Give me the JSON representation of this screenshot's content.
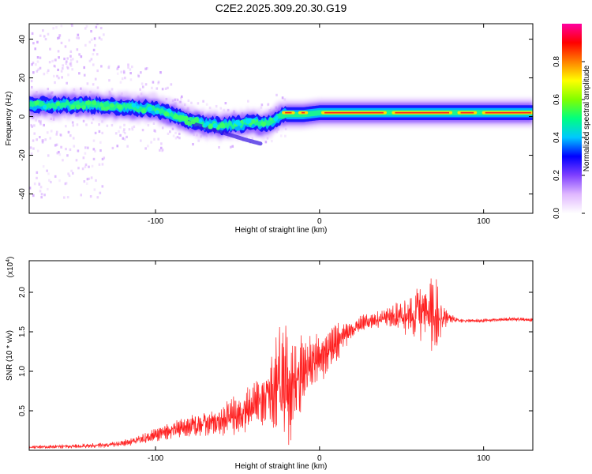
{
  "title": "C2E2.2025.309.20.30.G19",
  "chart_data": [
    {
      "type": "heatmap",
      "name": "spectrogram",
      "xlabel": "Height of straight line (km)",
      "ylabel": "Frequency (Hz)",
      "xlim": [
        -177,
        130
      ],
      "ylim": [
        -50,
        48
      ],
      "xticks": [
        -100,
        0,
        100
      ],
      "yticks": [
        -40,
        -20,
        0,
        20,
        40
      ],
      "ridge": [
        [
          -177,
          6
        ],
        [
          -140,
          6
        ],
        [
          -120,
          5
        ],
        [
          -100,
          4
        ],
        [
          -90,
          1
        ],
        [
          -80,
          -2
        ],
        [
          -70,
          -4
        ],
        [
          -60,
          -5
        ],
        [
          -50,
          -4
        ],
        [
          -40,
          -3
        ],
        [
          -35,
          -4
        ],
        [
          -30,
          -3
        ],
        [
          -25,
          0
        ],
        [
          -20,
          1
        ],
        [
          -10,
          1
        ],
        [
          0,
          2
        ],
        [
          10,
          2
        ],
        [
          130,
          2
        ]
      ],
      "ridge_band_hz": 4,
      "colorbar": {
        "label": "Normalized spectral amplitude",
        "range": [
          0,
          1
        ],
        "ticks": [
          "0.0",
          "0.2",
          "0.4",
          "0.6",
          "0.8"
        ],
        "tick_values": [
          0.0,
          0.2,
          0.4,
          0.6,
          0.8
        ],
        "colors": [
          "#ffffff",
          "#e0b8ff",
          "#8040ff",
          "#0000ff",
          "#00c8ff",
          "#00ff80",
          "#80ff00",
          "#ffff00",
          "#ff8000",
          "#ff0000",
          "#ff00a0"
        ]
      }
    },
    {
      "type": "line",
      "name": "snr",
      "xlabel": "Height of straight line (km)",
      "ylabel": "SNR (10 * v/v)",
      "multiplier": "(x10",
      "multiplier_exp": "4",
      "multiplier_close": ")",
      "xlim": [
        -177,
        130
      ],
      "ylim": [
        0,
        2.4
      ],
      "xticks": [
        -100,
        0,
        100
      ],
      "yticks": [
        0.5,
        1.0,
        1.5,
        2.0
      ],
      "ytick_labels": [
        "0.5",
        "1.0",
        "1.5",
        "2.0"
      ],
      "color": "#ff2020",
      "envelope": [
        [
          -177,
          0.04
        ],
        [
          -150,
          0.05
        ],
        [
          -125,
          0.07
        ],
        [
          -110,
          0.13
        ],
        [
          -95,
          0.22
        ],
        [
          -80,
          0.3
        ],
        [
          -65,
          0.36
        ],
        [
          -50,
          0.46
        ],
        [
          -40,
          0.55
        ],
        [
          -30,
          0.7
        ],
        [
          -22,
          1.0
        ],
        [
          -18,
          0.7
        ],
        [
          -12,
          0.95
        ],
        [
          -5,
          1.1
        ],
        [
          5,
          1.25
        ],
        [
          15,
          1.45
        ],
        [
          25,
          1.6
        ],
        [
          40,
          1.68
        ],
        [
          55,
          1.7
        ],
        [
          65,
          1.75
        ],
        [
          75,
          1.72
        ],
        [
          85,
          1.64
        ],
        [
          100,
          1.64
        ],
        [
          115,
          1.66
        ],
        [
          130,
          1.65
        ]
      ],
      "noise": [
        [
          -177,
          0.015
        ],
        [
          -120,
          0.03
        ],
        [
          -100,
          0.07
        ],
        [
          -60,
          0.17
        ],
        [
          -45,
          0.22
        ],
        [
          -30,
          0.35
        ],
        [
          -22,
          0.9
        ],
        [
          -15,
          0.45
        ],
        [
          -5,
          0.3
        ],
        [
          10,
          0.2
        ],
        [
          20,
          0.1
        ],
        [
          40,
          0.08
        ],
        [
          55,
          0.22
        ],
        [
          65,
          0.35
        ],
        [
          72,
          0.4
        ],
        [
          78,
          0.06
        ],
        [
          85,
          0.02
        ],
        [
          130,
          0.02
        ]
      ]
    }
  ]
}
